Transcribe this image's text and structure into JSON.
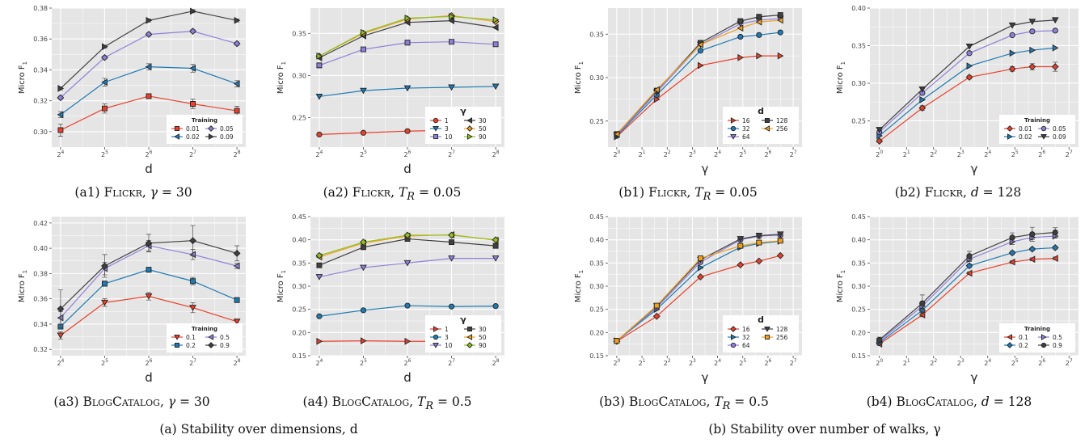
{
  "chart_data": [
    {
      "id": "a1",
      "type": "line",
      "xscale": "log2",
      "xticks": [
        16,
        32,
        64,
        128,
        256
      ],
      "xlabel": "d",
      "ylabel": "Micro F1",
      "ylim": [
        0.29,
        0.38
      ],
      "yticks": [
        0.3,
        0.32,
        0.34,
        0.36,
        0.38
      ],
      "ytick_labels": [
        "0.30",
        "0.32",
        "0.34",
        "0.36",
        "0.38"
      ],
      "x": [
        16,
        32,
        64,
        128,
        256
      ],
      "legend": {
        "title": "Training",
        "columns": 2,
        "placement": "bottom-right",
        "bg": "#ffffff"
      },
      "series": [
        {
          "name": "0.01",
          "color": "#e8402b",
          "marker": "square",
          "values": [
            0.301,
            0.315,
            0.323,
            0.318,
            0.3135
          ],
          "err": [
            0.004,
            0.003,
            0.0015,
            0.003,
            0.003
          ]
        },
        {
          "name": "0.02",
          "color": "#1f7bb3",
          "marker": "tri-left",
          "values": [
            0.311,
            0.332,
            0.342,
            0.341,
            0.331
          ],
          "err": [
            0.002,
            0.0025,
            0.002,
            0.0025,
            0.002
          ]
        },
        {
          "name": "0.05",
          "color": "#8e80d8",
          "marker": "diamond",
          "values": [
            0.322,
            0.348,
            0.363,
            0.365,
            0.357
          ],
          "err": [
            0.001,
            0.001,
            0.001,
            0.001,
            0.001
          ]
        },
        {
          "name": "0.09",
          "color": "#404040",
          "marker": "tri-right",
          "values": [
            0.328,
            0.355,
            0.372,
            0.378,
            0.372
          ],
          "err": [
            0.001,
            0.001,
            0.001,
            0.001,
            0.001
          ]
        }
      ]
    },
    {
      "id": "a2",
      "type": "line",
      "xscale": "log2",
      "xticks": [
        16,
        32,
        64,
        128,
        256
      ],
      "xlabel": "d",
      "ylabel": "Micro F1",
      "ylim": [
        0.215,
        0.38
      ],
      "yticks": [
        0.25,
        0.3,
        0.35
      ],
      "ytick_labels": [
        "0.25",
        "0.30",
        "0.35"
      ],
      "x": [
        16,
        32,
        64,
        128,
        256
      ],
      "legend": {
        "title": "γ",
        "columns": 2,
        "placement": "bottom-right",
        "bg": "#ffffff"
      },
      "series": [
        {
          "name": "1",
          "color": "#e8402b",
          "marker": "circle",
          "values": [
            0.23,
            0.232,
            0.234,
            0.235,
            0.236
          ]
        },
        {
          "name": "3",
          "color": "#1f7bb3",
          "marker": "tri-down",
          "values": [
            0.275,
            0.282,
            0.285,
            0.286,
            0.287
          ]
        },
        {
          "name": "10",
          "color": "#8e80d8",
          "marker": "square",
          "values": [
            0.312,
            0.331,
            0.339,
            0.34,
            0.337
          ]
        },
        {
          "name": "30",
          "color": "#404040",
          "marker": "tri-left",
          "values": [
            0.321,
            0.347,
            0.363,
            0.365,
            0.357
          ]
        },
        {
          "name": "50",
          "color": "#f0a020",
          "marker": "diamond",
          "values": [
            0.323,
            0.35,
            0.367,
            0.371,
            0.364
          ]
        },
        {
          "name": "90",
          "color": "#90c020",
          "marker": "tri-right",
          "values": [
            0.323,
            0.351,
            0.368,
            0.37,
            0.366
          ]
        }
      ]
    },
    {
      "id": "a3",
      "type": "line",
      "xscale": "log2",
      "xticks": [
        16,
        32,
        64,
        128,
        256
      ],
      "xlabel": "d",
      "ylabel": "Micro F1",
      "ylim": [
        0.315,
        0.425
      ],
      "yticks": [
        0.32,
        0.34,
        0.36,
        0.38,
        0.4,
        0.42
      ],
      "ytick_labels": [
        "0.32",
        "0.34",
        "0.36",
        "0.38",
        "0.40",
        "0.42"
      ],
      "x": [
        16,
        32,
        64,
        128,
        256
      ],
      "legend": {
        "title": "Training",
        "columns": 2,
        "placement": "bottom-right",
        "bg": "#ffffff"
      },
      "series": [
        {
          "name": "0.1",
          "color": "#e8402b",
          "marker": "tri-down",
          "values": [
            0.331,
            0.357,
            0.362,
            0.353,
            0.342
          ],
          "err": [
            0.003,
            0.003,
            0.003,
            0.004,
            0.002
          ]
        },
        {
          "name": "0.2",
          "color": "#1f7bb3",
          "marker": "square",
          "values": [
            0.338,
            0.372,
            0.383,
            0.374,
            0.359
          ],
          "err": [
            0.002,
            0.002,
            0.002,
            0.003,
            0.002
          ]
        },
        {
          "name": "0.5",
          "color": "#8e80d8",
          "marker": "tri-left",
          "values": [
            0.345,
            0.384,
            0.402,
            0.395,
            0.386
          ],
          "err": [
            0.005,
            0.005,
            0.004,
            0.004,
            0.002
          ]
        },
        {
          "name": "0.9",
          "color": "#404040",
          "marker": "diamond",
          "values": [
            0.352,
            0.386,
            0.404,
            0.406,
            0.396
          ],
          "err": [
            0.015,
            0.009,
            0.007,
            0.012,
            0.006
          ]
        }
      ]
    },
    {
      "id": "a4",
      "type": "line",
      "xscale": "log2",
      "xticks": [
        16,
        32,
        64,
        128,
        256
      ],
      "xlabel": "d",
      "ylabel": "Micro F1",
      "ylim": [
        0.15,
        0.45
      ],
      "yticks": [
        0.15,
        0.2,
        0.25,
        0.3,
        0.35,
        0.4,
        0.45
      ],
      "ytick_labels": [
        "0.15",
        "0.20",
        "0.25",
        "0.30",
        "0.35",
        "0.40",
        "0.45"
      ],
      "x": [
        16,
        32,
        64,
        128,
        256
      ],
      "legend": {
        "title": "γ",
        "columns": 2,
        "placement": "bottom-right",
        "bg": "#ffffff"
      },
      "series": [
        {
          "name": "1",
          "color": "#e8402b",
          "marker": "tri-right",
          "values": [
            0.181,
            0.182,
            0.181,
            0.181,
            0.18
          ]
        },
        {
          "name": "3",
          "color": "#1f7bb3",
          "marker": "circle",
          "values": [
            0.235,
            0.248,
            0.258,
            0.256,
            0.257
          ]
        },
        {
          "name": "10",
          "color": "#8e80d8",
          "marker": "tri-down",
          "values": [
            0.32,
            0.34,
            0.35,
            0.36,
            0.36
          ]
        },
        {
          "name": "30",
          "color": "#404040",
          "marker": "square",
          "values": [
            0.345,
            0.384,
            0.402,
            0.395,
            0.387
          ]
        },
        {
          "name": "50",
          "color": "#f0a020",
          "marker": "tri-left",
          "values": [
            0.363,
            0.393,
            0.408,
            0.411,
            0.399
          ]
        },
        {
          "name": "90",
          "color": "#90c020",
          "marker": "diamond",
          "values": [
            0.366,
            0.395,
            0.41,
            0.41,
            0.4
          ]
        }
      ]
    },
    {
      "id": "b1",
      "type": "line",
      "xscale": "log2",
      "xticks": [
        1,
        2,
        4,
        8,
        16,
        32,
        64,
        128
      ],
      "xlabel": "γ",
      "ylabel": "Micro F1",
      "ylim": [
        0.22,
        0.38
      ],
      "yticks": [
        0.25,
        0.3,
        0.35
      ],
      "ytick_labels": [
        "0.25",
        "0.30",
        "0.35"
      ],
      "x": [
        1,
        3,
        10,
        30,
        50,
        90
      ],
      "legend": {
        "title": "d",
        "columns": 2,
        "placement": "bottom-right",
        "bg": "#ffffff"
      },
      "series": [
        {
          "name": "16",
          "color": "#e8402b",
          "marker": "tri-right",
          "values": [
            0.232,
            0.275,
            0.314,
            0.323,
            0.325,
            0.325
          ]
        },
        {
          "name": "32",
          "color": "#1f7bb3",
          "marker": "circle",
          "values": [
            0.233,
            0.28,
            0.331,
            0.347,
            0.349,
            0.352
          ]
        },
        {
          "name": "64",
          "color": "#8e80d8",
          "marker": "tri-down",
          "values": [
            0.234,
            0.283,
            0.338,
            0.362,
            0.366,
            0.368
          ]
        },
        {
          "name": "128",
          "color": "#404040",
          "marker": "square",
          "values": [
            0.235,
            0.285,
            0.34,
            0.365,
            0.37,
            0.372
          ]
        },
        {
          "name": "256",
          "color": "#f0a020",
          "marker": "tri-left",
          "values": [
            0.235,
            0.286,
            0.338,
            0.357,
            0.364,
            0.366
          ]
        }
      ]
    },
    {
      "id": "b2",
      "type": "line",
      "xscale": "log2",
      "xticks": [
        1,
        2,
        4,
        8,
        16,
        32,
        64,
        128
      ],
      "xlabel": "γ",
      "ylabel": "Micro F1",
      "ylim": [
        0.215,
        0.4
      ],
      "yticks": [
        0.25,
        0.3,
        0.35,
        0.4
      ],
      "ytick_labels": [
        "0.25",
        "0.30",
        "0.35",
        "0.40"
      ],
      "x": [
        1,
        3,
        10,
        30,
        50,
        90
      ],
      "legend": {
        "title": "Training",
        "columns": 2,
        "placement": "bottom-right",
        "bg": "#ffffff"
      },
      "series": [
        {
          "name": "0.01",
          "color": "#e8402b",
          "marker": "diamond",
          "values": [
            0.223,
            0.267,
            0.308,
            0.319,
            0.322,
            0.322
          ],
          "err": [
            0.002,
            0.003,
            0.002,
            0.003,
            0.004,
            0.006
          ]
        },
        {
          "name": "0.02",
          "color": "#1f7bb3",
          "marker": "tri-right",
          "values": [
            0.23,
            0.278,
            0.323,
            0.34,
            0.344,
            0.347
          ]
        },
        {
          "name": "0.05",
          "color": "#8e80d8",
          "marker": "circle",
          "values": [
            0.235,
            0.287,
            0.34,
            0.364,
            0.369,
            0.37
          ]
        },
        {
          "name": "0.09",
          "color": "#404040",
          "marker": "tri-down",
          "values": [
            0.238,
            0.292,
            0.349,
            0.377,
            0.382,
            0.384
          ]
        }
      ]
    },
    {
      "id": "b3",
      "type": "line",
      "xscale": "log2",
      "xticks": [
        1,
        2,
        4,
        8,
        16,
        32,
        64,
        128
      ],
      "xlabel": "γ",
      "ylabel": "Micro F1",
      "ylim": [
        0.15,
        0.45
      ],
      "yticks": [
        0.15,
        0.2,
        0.25,
        0.3,
        0.35,
        0.4,
        0.45
      ],
      "ytick_labels": [
        "0.15",
        "0.20",
        "0.25",
        "0.30",
        "0.35",
        "0.40",
        "0.45"
      ],
      "x": [
        1,
        3,
        10,
        30,
        50,
        90
      ],
      "legend": {
        "title": "d",
        "columns": 2,
        "placement": "bottom-right",
        "bg": "#ffffff"
      },
      "series": [
        {
          "name": "16",
          "color": "#e8402b",
          "marker": "diamond",
          "values": [
            0.181,
            0.235,
            0.32,
            0.346,
            0.354,
            0.366
          ]
        },
        {
          "name": "32",
          "color": "#1f7bb3",
          "marker": "tri-right",
          "values": [
            0.182,
            0.25,
            0.34,
            0.384,
            0.392,
            0.397
          ]
        },
        {
          "name": "64",
          "color": "#8e80d8",
          "marker": "circle",
          "values": [
            0.182,
            0.254,
            0.352,
            0.4,
            0.408,
            0.41
          ]
        },
        {
          "name": "128",
          "color": "#404040",
          "marker": "tri-down",
          "values": [
            0.182,
            0.257,
            0.357,
            0.402,
            0.409,
            0.412
          ]
        },
        {
          "name": "256",
          "color": "#f0a020",
          "marker": "square",
          "values": [
            0.182,
            0.258,
            0.36,
            0.387,
            0.394,
            0.398
          ]
        }
      ]
    },
    {
      "id": "b4",
      "type": "line",
      "xscale": "log2",
      "xticks": [
        1,
        2,
        4,
        8,
        16,
        32,
        64,
        128
      ],
      "xlabel": "γ",
      "ylabel": "Micro F1",
      "ylim": [
        0.15,
        0.45
      ],
      "yticks": [
        0.15,
        0.2,
        0.25,
        0.3,
        0.35,
        0.4,
        0.45
      ],
      "ytick_labels": [
        "0.15",
        "0.20",
        "0.25",
        "0.30",
        "0.35",
        "0.40",
        "0.45"
      ],
      "x": [
        1,
        3,
        10,
        30,
        50,
        90
      ],
      "legend": {
        "title": "Training",
        "columns": 2,
        "placement": "bottom-right",
        "bg": "#ffffff"
      },
      "series": [
        {
          "name": "0.1",
          "color": "#e8402b",
          "marker": "tri-left",
          "values": [
            0.175,
            0.238,
            0.328,
            0.352,
            0.358,
            0.36
          ],
          "err": [
            0.003,
            0.004,
            0.003,
            0.003,
            0.003,
            0.003
          ]
        },
        {
          "name": "0.2",
          "color": "#1f7bb3",
          "marker": "diamond",
          "values": [
            0.178,
            0.248,
            0.344,
            0.372,
            0.38,
            0.383
          ],
          "err": [
            0.003,
            0.005,
            0.004,
            0.004,
            0.003,
            0.003
          ]
        },
        {
          "name": "0.5",
          "color": "#8e80d8",
          "marker": "tri-right",
          "values": [
            0.181,
            0.257,
            0.358,
            0.396,
            0.405,
            0.408
          ],
          "err": [
            0.004,
            0.007,
            0.005,
            0.006,
            0.005,
            0.004
          ]
        },
        {
          "name": "0.9",
          "color": "#404040",
          "marker": "circle",
          "values": [
            0.184,
            0.263,
            0.365,
            0.405,
            0.412,
            0.416
          ],
          "err": [
            0.006,
            0.018,
            0.01,
            0.01,
            0.015,
            0.01
          ]
        }
      ]
    }
  ],
  "captions": {
    "a1": {
      "label": "(a1)",
      "dataset": "Flickr",
      "param": "γ",
      "value": "30"
    },
    "a2": {
      "label": "(a2)",
      "dataset": "Flickr",
      "param": "T",
      "sub": "R",
      "value": "0.05"
    },
    "a3": {
      "label": "(a3)",
      "dataset": "BlogCatalog",
      "param": "γ",
      "value": "30"
    },
    "a4": {
      "label": "(a4)",
      "dataset": "BlogCatalog",
      "param": "T",
      "sub": "R",
      "value": "0.5"
    },
    "b1": {
      "label": "(b1)",
      "dataset": "Flickr",
      "param": "T",
      "sub": "R",
      "value": "0.05"
    },
    "b2": {
      "label": "(b2)",
      "dataset": "Flickr",
      "param": "d",
      "value": "128"
    },
    "b3": {
      "label": "(b3)",
      "dataset": "BlogCatalog",
      "param": "T",
      "sub": "R",
      "value": "0.5"
    },
    "b4": {
      "label": "(b4)",
      "dataset": "BlogCatalog",
      "param": "d",
      "value": "128"
    }
  },
  "group_captions": {
    "a": {
      "text": "(a) Stability over dimensions, ",
      "var": "d"
    },
    "b": {
      "text": "(b) Stability over number of walks, ",
      "var": "γ"
    }
  },
  "colors": {
    "panel_bg": "#e5e5e5",
    "grid": "#ffffff"
  }
}
